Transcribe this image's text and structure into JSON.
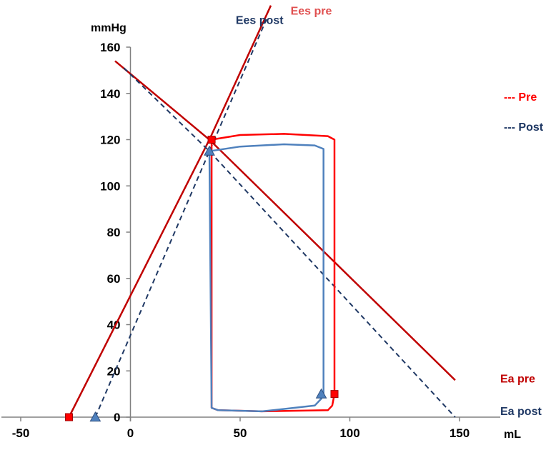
{
  "chart_data": {
    "type": "line",
    "xlabel": "mL",
    "ylabel": "mmHg",
    "xlim": [
      -50,
      155
    ],
    "ylim": [
      0,
      160
    ],
    "x_ticks": [
      -50,
      0,
      50,
      100,
      150
    ],
    "y_ticks": [
      0,
      20,
      40,
      60,
      80,
      100,
      120,
      140,
      160
    ],
    "x_tick_labels": [
      "-50",
      "0",
      "50",
      "100",
      "150"
    ],
    "y_tick_labels": [
      "0",
      "20",
      "40",
      "60",
      "80",
      "100",
      "120",
      "140",
      "160"
    ],
    "grid": false,
    "legend_position": "right",
    "legend": [
      {
        "label": "--- Pre",
        "color": "#FF0000"
      },
      {
        "label": "--- Post",
        "color": "#1F3864"
      }
    ],
    "colors": {
      "pre_line": "#C00000",
      "pre_loop": "#FF0000",
      "post_line": "#1F3864",
      "post_loop": "#4F81BD"
    },
    "series": [
      {
        "name": "Ees pre",
        "style": "solid",
        "color": "#C00000",
        "points": [
          [
            -28,
            0
          ],
          [
            36,
            120
          ],
          [
            64,
            178
          ]
        ]
      },
      {
        "name": "Ees post",
        "style": "dashed",
        "color": "#1F3864",
        "points": [
          [
            -16,
            0
          ],
          [
            36,
            115
          ],
          [
            62,
            172
          ]
        ]
      },
      {
        "name": "Ea pre",
        "style": "solid",
        "color": "#C00000",
        "points": [
          [
            -7,
            154
          ],
          [
            36,
            120
          ],
          [
            148,
            16
          ]
        ]
      },
      {
        "name": "Ea post",
        "style": "dashed",
        "color": "#1F3864",
        "points": [
          [
            -3,
            151
          ],
          [
            36,
            115
          ],
          [
            148,
            0
          ]
        ]
      }
    ],
    "loops": [
      {
        "condition": "Pre",
        "color": "#FF0000",
        "points": [
          [
            37,
            120
          ],
          [
            50,
            122
          ],
          [
            70,
            122.5
          ],
          [
            90,
            121.5
          ],
          [
            93,
            120
          ],
          [
            93,
            10
          ],
          [
            92,
            5
          ],
          [
            90,
            3
          ],
          [
            60,
            2.5
          ],
          [
            40,
            3
          ],
          [
            37,
            4
          ],
          [
            37,
            120
          ]
        ]
      },
      {
        "condition": "Post",
        "color": "#4F81BD",
        "points": [
          [
            36,
            115
          ],
          [
            50,
            117
          ],
          [
            70,
            118
          ],
          [
            84,
            117.5
          ],
          [
            88,
            116
          ],
          [
            88,
            10
          ],
          [
            87,
            8
          ],
          [
            84,
            5
          ],
          [
            60,
            2.5
          ],
          [
            40,
            3
          ],
          [
            37,
            4
          ],
          [
            36,
            115
          ]
        ]
      }
    ],
    "markers": [
      {
        "condition": "Pre",
        "shape": "square",
        "color": "#FF0000",
        "x": 93,
        "y": 10
      },
      {
        "condition": "Pre",
        "shape": "square",
        "color": "#FF0000",
        "x": 37,
        "y": 120
      },
      {
        "condition": "Pre",
        "shape": "square",
        "color": "#FF0000",
        "x": -28,
        "y": 0
      },
      {
        "condition": "Post",
        "shape": "triangle",
        "color": "#4F81BD",
        "x": 87,
        "y": 10
      },
      {
        "condition": "Post",
        "shape": "triangle",
        "color": "#4F81BD",
        "x": 36,
        "y": 115
      },
      {
        "condition": "Post",
        "shape": "triangle",
        "color": "#4F81BD",
        "x": -16,
        "y": 0
      }
    ],
    "annotations": [
      {
        "text": "Ees pre",
        "color": "#E05050",
        "x": 73,
        "y": 174
      },
      {
        "text": "Ees post",
        "color": "#1F3864",
        "x": 48,
        "y": 170
      },
      {
        "text": "Ea pre",
        "color": "#C00000",
        "x": 173,
        "y": 15
      },
      {
        "text": "Ea post",
        "color": "#1F3864",
        "x": 172,
        "y": 1
      }
    ]
  }
}
